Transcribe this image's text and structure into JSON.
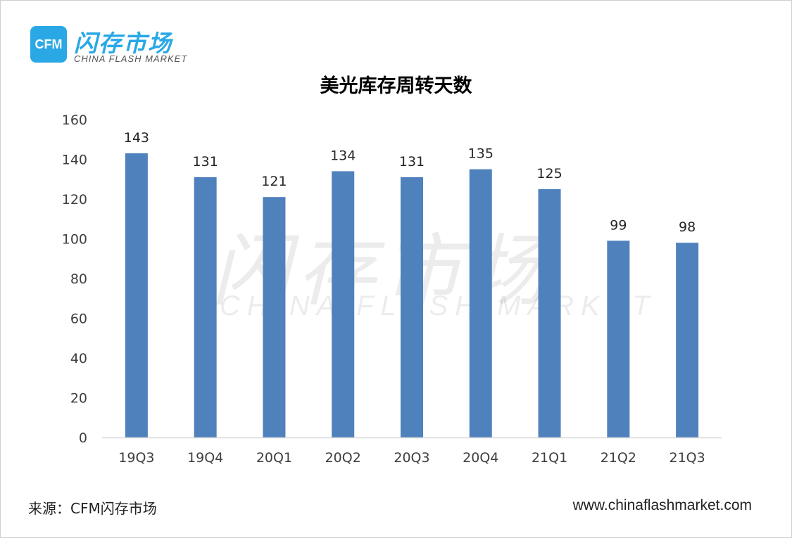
{
  "logo": {
    "badge": "CFM",
    "name_cn": "闪存市场",
    "name_en": "CHINA FLASH MARKET"
  },
  "watermark": {
    "cn": "闪存市场",
    "en": "CHINA FLASH MARKET"
  },
  "footer": {
    "source": "来源：CFM闪存市场",
    "website": "www.chinaflashmarket.com"
  },
  "colors": {
    "bar": "#4f81bd",
    "brand": "#2aa8e6",
    "axis": "#d9d9d9"
  },
  "chart_data": {
    "type": "bar",
    "title": "美光库存周转天数",
    "xlabel": "",
    "ylabel": "",
    "ylim": [
      0,
      160
    ],
    "yticks": [
      0,
      20,
      40,
      60,
      80,
      100,
      120,
      140,
      160
    ],
    "grid": false,
    "legend": "none",
    "categories": [
      "19Q3",
      "19Q4",
      "20Q1",
      "20Q2",
      "20Q3",
      "20Q4",
      "21Q1",
      "21Q2",
      "21Q3"
    ],
    "values": [
      143,
      131,
      121,
      134,
      131,
      135,
      125,
      99,
      98
    ],
    "data_labels": true
  }
}
